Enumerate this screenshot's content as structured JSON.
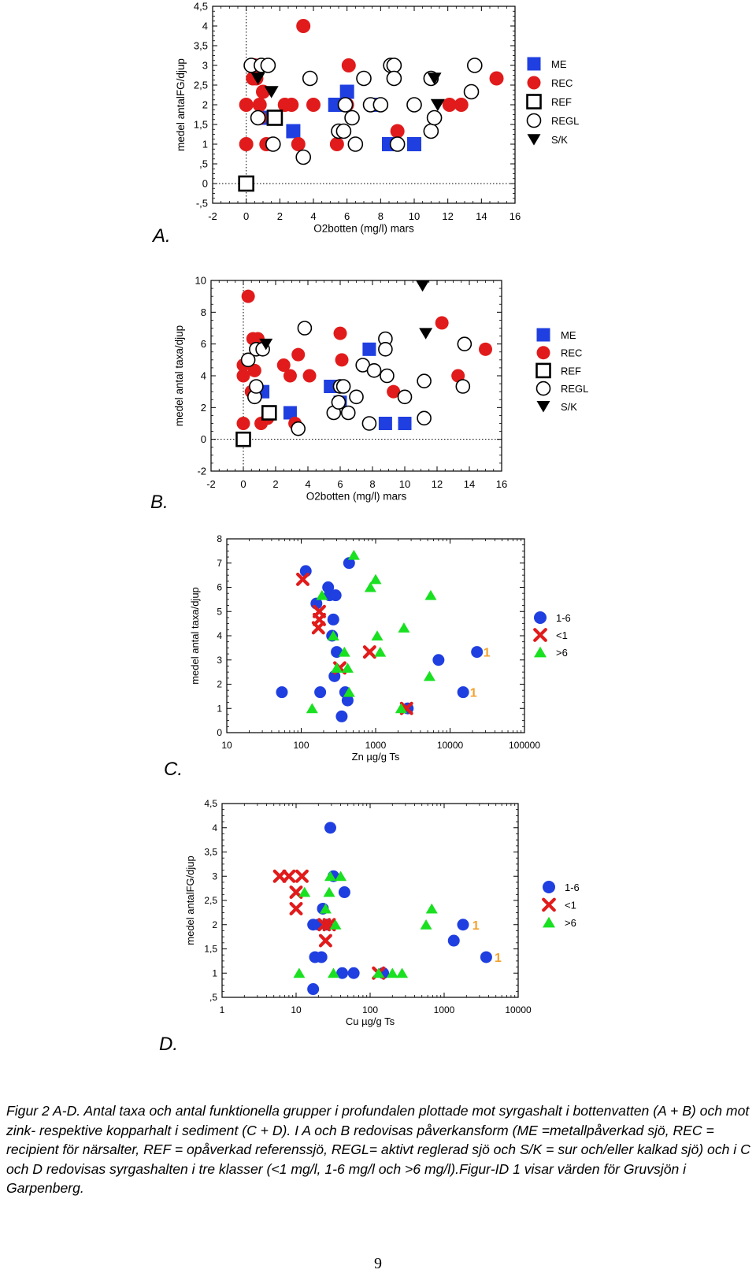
{
  "chart_data": [
    {
      "id": "A",
      "type": "scatter",
      "panel_label": "A.",
      "xlabel": "O2botten (mg/l) mars",
      "ylabel": "medel antalFG/djup",
      "xlim": [
        -2,
        16
      ],
      "ylim": [
        -0.5,
        4.5
      ],
      "x_ticks": [
        "-2",
        "0",
        "2",
        "4",
        "6",
        "8",
        "10",
        "12",
        "14",
        "16"
      ],
      "y_ticks": [
        "-,5",
        "0",
        ",5",
        "1",
        "1,5",
        "2",
        "2,5",
        "3",
        "3,5",
        "4",
        "4,5"
      ],
      "legend_position": "right",
      "reference_lines": {
        "x": 0,
        "y": 0
      },
      "colors": {
        "ME": "#1f3fe0",
        "REC": "#e11b1b",
        "REF": "#000000",
        "REGL": "#000000",
        "S/K": "#000000"
      },
      "series": [
        {
          "name": "ME",
          "marker": "filled-square",
          "points": [
            [
              1.3,
              1.67
            ],
            [
              2.8,
              1.33
            ],
            [
              5.3,
              2.0
            ],
            [
              6.0,
              2.33
            ],
            [
              7.6,
              2.0
            ],
            [
              8.5,
              1.0
            ],
            [
              10.0,
              1.0
            ]
          ]
        },
        {
          "name": "REC",
          "marker": "filled-circle",
          "points": [
            [
              0.0,
              1.0
            ],
            [
              0.0,
              2.0
            ],
            [
              0.4,
              2.67
            ],
            [
              0.5,
              3.0
            ],
            [
              0.6,
              2.67
            ],
            [
              0.8,
              2.0
            ],
            [
              0.8,
              1.67
            ],
            [
              1.0,
              2.33
            ],
            [
              1.0,
              3.0
            ],
            [
              1.2,
              1.0
            ],
            [
              1.5,
              1.0
            ],
            [
              2.3,
              2.0
            ],
            [
              2.7,
              2.0
            ],
            [
              3.1,
              1.0
            ],
            [
              3.4,
              4.0
            ],
            [
              4.0,
              2.0
            ],
            [
              5.4,
              1.0
            ],
            [
              6.0,
              2.0
            ],
            [
              6.1,
              3.0
            ],
            [
              9.0,
              1.33
            ],
            [
              12.1,
              2.0
            ],
            [
              12.8,
              2.0
            ],
            [
              14.9,
              2.67
            ]
          ]
        },
        {
          "name": "REF",
          "marker": "open-square",
          "points": [
            [
              0.0,
              0.0
            ],
            [
              1.7,
              1.67
            ]
          ]
        },
        {
          "name": "REGL",
          "marker": "open-circle",
          "points": [
            [
              0.3,
              3.0
            ],
            [
              0.7,
              1.67
            ],
            [
              0.9,
              3.0
            ],
            [
              1.3,
              3.0
            ],
            [
              1.6,
              1.0
            ],
            [
              3.4,
              0.67
            ],
            [
              3.8,
              2.67
            ],
            [
              5.5,
              1.33
            ],
            [
              5.8,
              1.33
            ],
            [
              5.9,
              2.0
            ],
            [
              6.3,
              1.67
            ],
            [
              6.5,
              1.0
            ],
            [
              7.0,
              2.67
            ],
            [
              7.4,
              2.0
            ],
            [
              8.0,
              2.0
            ],
            [
              8.6,
              3.0
            ],
            [
              8.8,
              3.0
            ],
            [
              8.8,
              2.67
            ],
            [
              9.0,
              1.0
            ],
            [
              10.0,
              2.0
            ],
            [
              11.0,
              2.67
            ],
            [
              11.0,
              1.33
            ],
            [
              11.2,
              1.67
            ],
            [
              13.4,
              2.33
            ],
            [
              13.6,
              3.0
            ]
          ]
        },
        {
          "name": "S/K",
          "marker": "filled-triangle-down",
          "points": [
            [
              0.7,
              2.67
            ],
            [
              1.5,
              2.33
            ],
            [
              11.2,
              2.67
            ],
            [
              11.4,
              2.0
            ]
          ]
        }
      ]
    },
    {
      "id": "B",
      "type": "scatter",
      "panel_label": "B.",
      "xlabel": "O2botten (mg/l) mars",
      "ylabel": "medel antal taxa/djup",
      "xlim": [
        -2,
        16
      ],
      "ylim": [
        -2,
        10
      ],
      "x_ticks": [
        "-2",
        "0",
        "2",
        "4",
        "6",
        "8",
        "10",
        "12",
        "14",
        "16"
      ],
      "y_ticks": [
        "-2",
        "0",
        "2",
        "4",
        "6",
        "8",
        "10"
      ],
      "legend_position": "right",
      "reference_lines": {
        "x": 0,
        "y": 0
      },
      "colors": {
        "ME": "#1f3fe0",
        "REC": "#e11b1b",
        "REF": "#000000",
        "REGL": "#000000",
        "S/K": "#000000"
      },
      "series": [
        {
          "name": "ME",
          "marker": "filled-square",
          "points": [
            [
              1.2,
              3.0
            ],
            [
              2.9,
              1.67
            ],
            [
              5.4,
              3.33
            ],
            [
              6.0,
              2.33
            ],
            [
              7.8,
              5.67
            ],
            [
              8.8,
              1.0
            ],
            [
              10.0,
              1.0
            ]
          ]
        },
        {
          "name": "REC",
          "marker": "filled-circle",
          "points": [
            [
              0.0,
              1.0
            ],
            [
              0.0,
              4.67
            ],
            [
              0.0,
              4.0
            ],
            [
              0.3,
              9.0
            ],
            [
              0.5,
              3.0
            ],
            [
              0.6,
              6.33
            ],
            [
              0.7,
              4.33
            ],
            [
              0.9,
              6.33
            ],
            [
              1.1,
              1.0
            ],
            [
              1.5,
              1.33
            ],
            [
              2.5,
              4.67
            ],
            [
              2.9,
              4.0
            ],
            [
              3.2,
              1.0
            ],
            [
              3.4,
              5.33
            ],
            [
              4.1,
              4.0
            ],
            [
              5.6,
              1.67
            ],
            [
              6.0,
              6.67
            ],
            [
              6.1,
              5.0
            ],
            [
              9.3,
              3.0
            ],
            [
              12.3,
              7.33
            ],
            [
              13.3,
              4.0
            ],
            [
              15.0,
              5.67
            ]
          ]
        },
        {
          "name": "REF",
          "marker": "open-square",
          "points": [
            [
              0.0,
              0.0
            ],
            [
              1.6,
              1.67
            ]
          ]
        },
        {
          "name": "REGL",
          "marker": "open-circle",
          "points": [
            [
              0.3,
              5.0
            ],
            [
              0.7,
              2.67
            ],
            [
              0.8,
              5.67
            ],
            [
              0.8,
              3.33
            ],
            [
              1.2,
              5.67
            ],
            [
              3.4,
              0.67
            ],
            [
              3.8,
              7.0
            ],
            [
              5.6,
              1.67
            ],
            [
              5.9,
              2.33
            ],
            [
              6.0,
              3.33
            ],
            [
              6.2,
              3.33
            ],
            [
              6.5,
              1.67
            ],
            [
              7.0,
              2.67
            ],
            [
              7.4,
              4.67
            ],
            [
              7.8,
              1.0
            ],
            [
              8.1,
              4.33
            ],
            [
              8.8,
              6.33
            ],
            [
              8.8,
              5.67
            ],
            [
              8.9,
              4.0
            ],
            [
              10.0,
              2.67
            ],
            [
              11.2,
              1.33
            ],
            [
              11.2,
              3.67
            ],
            [
              13.6,
              3.33
            ],
            [
              13.7,
              6.0
            ]
          ]
        },
        {
          "name": "S/K",
          "marker": "filled-triangle-down",
          "points": [
            [
              1.4,
              6.0
            ],
            [
              11.1,
              9.67
            ],
            [
              11.3,
              6.67
            ]
          ]
        }
      ]
    },
    {
      "id": "C",
      "type": "scatter",
      "panel_label": "C.",
      "xlabel": "Zn µg/g Ts",
      "ylabel": "medel antal taxa/djup",
      "x_scale": "log",
      "xlim": [
        10,
        100000
      ],
      "ylim": [
        0,
        8
      ],
      "x_ticks": [
        "10",
        "100",
        "1000",
        "10000",
        "100000"
      ],
      "y_ticks": [
        "0",
        "1",
        "2",
        "3",
        "4",
        "5",
        "6",
        "7",
        "8"
      ],
      "legend_position": "right",
      "colors": {
        "1-6": "#1f3fe0",
        "<1": "#e11b1b",
        ">6": "#19e020",
        "annotation": "#f2a22e"
      },
      "annotations": [
        {
          "text": "1",
          "x": 28000,
          "y": 3.33
        },
        {
          "text": "1",
          "x": 18500,
          "y": 1.67
        }
      ],
      "series": [
        {
          "name": "1-6",
          "marker": "filled-circle",
          "points": [
            [
              55,
              1.67
            ],
            [
              115,
              6.67
            ],
            [
              160,
              5.33
            ],
            [
              180,
              1.67
            ],
            [
              230,
              6.0
            ],
            [
              240,
              5.67
            ],
            [
              260,
              4.0
            ],
            [
              270,
              4.67
            ],
            [
              290,
              5.67
            ],
            [
              280,
              2.33
            ],
            [
              300,
              3.33
            ],
            [
              350,
              0.67
            ],
            [
              390,
              1.67
            ],
            [
              420,
              1.33
            ],
            [
              440,
              7.0
            ],
            [
              2700,
              1.0
            ],
            [
              7000,
              3.0
            ],
            [
              15000,
              1.67
            ],
            [
              23000,
              3.33
            ]
          ]
        },
        {
          "name": "<1",
          "marker": "x",
          "points": [
            [
              105,
              6.33
            ],
            [
              175,
              5.0
            ],
            [
              175,
              4.67
            ],
            [
              170,
              4.33
            ],
            [
              330,
              2.67
            ],
            [
              830,
              3.33
            ],
            [
              2600,
              1.0
            ]
          ]
        },
        {
          "name": ">6",
          "marker": "filled-triangle-up",
          "points": [
            [
              140,
              1.0
            ],
            [
              190,
              5.67
            ],
            [
              270,
              4.0
            ],
            [
              300,
              2.67
            ],
            [
              380,
              3.33
            ],
            [
              420,
              2.67
            ],
            [
              440,
              1.67
            ],
            [
              510,
              7.33
            ],
            [
              850,
              6.0
            ],
            [
              1000,
              6.33
            ],
            [
              1050,
              4.0
            ],
            [
              1150,
              3.33
            ],
            [
              2200,
              1.0
            ],
            [
              2400,
              4.33
            ],
            [
              5500,
              5.67
            ],
            [
              5300,
              2.33
            ]
          ]
        }
      ]
    },
    {
      "id": "D",
      "type": "scatter",
      "panel_label": "D.",
      "xlabel": "Cu µg/g Ts",
      "ylabel": "medel antalFG/djup",
      "x_scale": "log",
      "xlim": [
        1,
        10000
      ],
      "ylim": [
        0.5,
        4.5
      ],
      "x_ticks": [
        "1",
        "10",
        "100",
        "1000",
        "10000"
      ],
      "y_ticks": [
        ",5",
        "1",
        "1,5",
        "2",
        "2,5",
        "3",
        "3,5",
        "4",
        "4,5"
      ],
      "legend_position": "right",
      "colors": {
        "1-6": "#1f3fe0",
        "<1": "#e11b1b",
        ">6": "#19e020",
        "annotation": "#f2a22e"
      },
      "annotations": [
        {
          "text": "1",
          "x": 2400,
          "y": 2.0
        },
        {
          "text": "1",
          "x": 4800,
          "y": 1.33
        }
      ],
      "series": [
        {
          "name": "1-6",
          "marker": "filled-circle",
          "points": [
            [
              17,
              0.67
            ],
            [
              17,
              2.0
            ],
            [
              18,
              1.33
            ],
            [
              20,
              2.0
            ],
            [
              22,
              1.33
            ],
            [
              23,
              2.33
            ],
            [
              26,
              2.0
            ],
            [
              29,
              4.0
            ],
            [
              32,
              3.0
            ],
            [
              42,
              1.0
            ],
            [
              45,
              2.67
            ],
            [
              60,
              1.0
            ],
            [
              150,
              1.0
            ],
            [
              1350,
              1.67
            ],
            [
              1800,
              2.0
            ],
            [
              3700,
              1.33
            ]
          ]
        },
        {
          "name": "<1",
          "marker": "x",
          "points": [
            [
              6,
              3.0
            ],
            [
              8,
              3.0
            ],
            [
              10,
              2.67
            ],
            [
              10,
              2.33
            ],
            [
              12,
              3.0
            ],
            [
              24,
              2.0
            ],
            [
              25,
              1.67
            ],
            [
              28,
              2.0
            ],
            [
              130,
              1.0
            ]
          ]
        },
        {
          "name": ">6",
          "marker": "filled-triangle-up",
          "points": [
            [
              11,
              1.0
            ],
            [
              13,
              2.67
            ],
            [
              25,
              2.33
            ],
            [
              28,
              2.67
            ],
            [
              29,
              3.0
            ],
            [
              32,
              1.0
            ],
            [
              34,
              2.0
            ],
            [
              40,
              3.0
            ],
            [
              130,
              1.0
            ],
            [
              200,
              1.0
            ],
            [
              270,
              1.0
            ],
            [
              570,
              2.0
            ],
            [
              680,
              2.33
            ]
          ]
        }
      ]
    }
  ],
  "legend_labels": {
    "A": [
      "ME",
      "REC",
      "REF",
      "REGL",
      "S/K"
    ],
    "B": [
      "ME",
      "REC",
      "REF",
      "REGL",
      "S/K"
    ],
    "C": [
      "1-6",
      "<1",
      ">6"
    ],
    "D": [
      "1-6",
      "<1",
      ">6"
    ]
  },
  "caption": "Figur 2 A-D. Antal taxa och antal funktionella grupper i profundalen plottade mot syrgashalt i bottenvatten (A + B) och mot zink- respektive kopparhalt i sediment (C + D). I A och B redovisas påverkansform (ME =metallpåverkad sjö, REC = recipient för närsalter, REF = opåverkad referenssjö, REGL= aktivt reglerad sjö och S/K = sur och/eller kalkad sjö) och i C och D redovisas syrgashalten i tre klasser (<1 mg/l, 1-6 mg/l och >6 mg/l).Figur-ID 1 visar värden för Gruvsjön i Garpenberg.",
  "page_number": "9"
}
